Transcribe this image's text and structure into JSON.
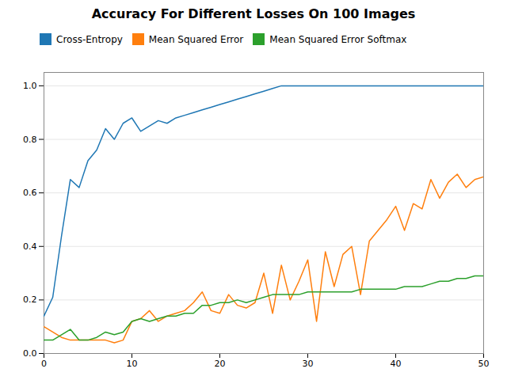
{
  "chart_data": {
    "type": "line",
    "title": "Accuracy For Different Losses On 100 Images",
    "x": [
      0,
      1,
      2,
      3,
      4,
      5,
      6,
      7,
      8,
      9,
      10,
      11,
      12,
      13,
      14,
      15,
      16,
      17,
      18,
      19,
      20,
      21,
      22,
      23,
      24,
      25,
      26,
      27,
      28,
      29,
      30,
      31,
      32,
      33,
      34,
      35,
      36,
      37,
      38,
      39,
      40,
      41,
      42,
      43,
      44,
      45,
      46,
      47,
      48,
      49,
      50
    ],
    "series": [
      {
        "name": "Cross-Entropy",
        "color": "#1f77b4",
        "values": [
          0.14,
          0.21,
          0.44,
          0.65,
          0.62,
          0.72,
          0.76,
          0.84,
          0.8,
          0.86,
          0.88,
          0.83,
          0.85,
          0.87,
          0.86,
          0.88,
          0.89,
          0.9,
          0.91,
          0.92,
          0.93,
          0.94,
          0.95,
          0.96,
          0.97,
          0.98,
          0.99,
          1.0,
          1.0,
          1.0,
          1.0,
          1.0,
          1.0,
          1.0,
          1.0,
          1.0,
          1.0,
          1.0,
          1.0,
          1.0,
          1.0,
          1.0,
          1.0,
          1.0,
          1.0,
          1.0,
          1.0,
          1.0,
          1.0,
          1.0,
          1.0
        ]
      },
      {
        "name": "Mean Squared Error",
        "color": "#ff7f0e",
        "values": [
          0.1,
          0.08,
          0.06,
          0.05,
          0.05,
          0.05,
          0.05,
          0.05,
          0.04,
          0.05,
          0.12,
          0.13,
          0.16,
          0.12,
          0.14,
          0.15,
          0.16,
          0.19,
          0.23,
          0.16,
          0.15,
          0.22,
          0.18,
          0.17,
          0.19,
          0.3,
          0.15,
          0.33,
          0.2,
          0.27,
          0.35,
          0.12,
          0.38,
          0.25,
          0.37,
          0.4,
          0.22,
          0.42,
          0.46,
          0.5,
          0.55,
          0.46,
          0.56,
          0.54,
          0.65,
          0.58,
          0.64,
          0.67,
          0.62,
          0.65,
          0.66
        ]
      },
      {
        "name": "Mean Squared Error Softmax",
        "color": "#2ca02c",
        "values": [
          0.05,
          0.05,
          0.07,
          0.09,
          0.05,
          0.05,
          0.06,
          0.08,
          0.07,
          0.08,
          0.12,
          0.13,
          0.12,
          0.13,
          0.14,
          0.14,
          0.15,
          0.15,
          0.18,
          0.18,
          0.19,
          0.19,
          0.2,
          0.19,
          0.2,
          0.21,
          0.22,
          0.22,
          0.22,
          0.22,
          0.23,
          0.23,
          0.23,
          0.23,
          0.23,
          0.23,
          0.24,
          0.24,
          0.24,
          0.24,
          0.24,
          0.25,
          0.25,
          0.25,
          0.26,
          0.27,
          0.27,
          0.28,
          0.28,
          0.29,
          0.29
        ]
      }
    ],
    "xlim": [
      0,
      50
    ],
    "xticks": [
      0,
      10,
      20,
      30,
      40,
      50
    ],
    "ylim": [
      0.0,
      1.05
    ],
    "yticks": [
      {
        "value": 0.0,
        "label": "0.0"
      },
      0.2,
      0.4,
      0.6,
      0.8,
      {
        "value": 1.0,
        "label": "1.0"
      }
    ],
    "grid": "y",
    "legend": "upper left"
  }
}
